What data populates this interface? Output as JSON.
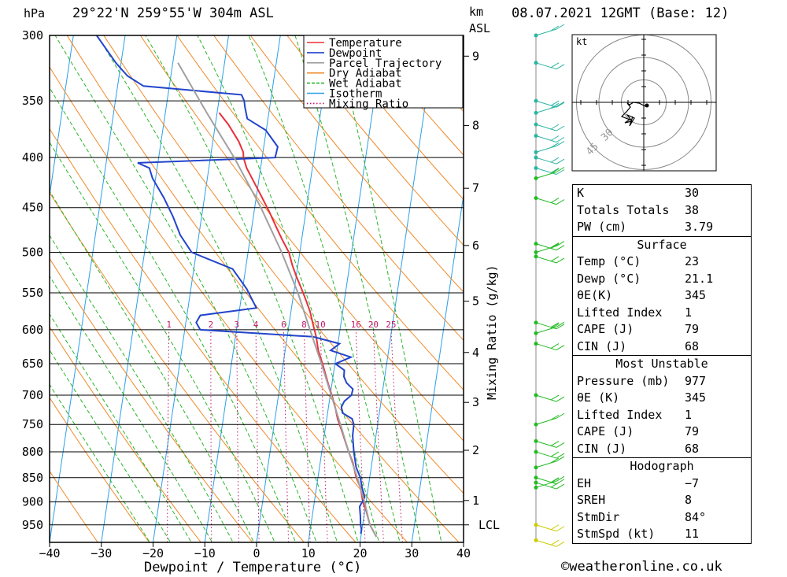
{
  "header": {
    "unit_left": "hPa",
    "location": "29°22'N  259°55'W  304m  ASL",
    "unit_km": "km",
    "unit_asl": "ASL",
    "datetime": "08.07.2021  12GMT  (Base: 12)"
  },
  "chart_data": {
    "type": "line",
    "title": "Skew-T log-P diagram",
    "xlabel": "Dewpoint / Temperature (°C)",
    "ylabel": "hPa",
    "right_label": "Mixing Ratio (g/kg)",
    "xlim": [
      -40,
      40
    ],
    "ylim": [
      990,
      300
    ],
    "x_ticks": [
      "−40",
      "−30",
      "−20",
      "−10",
      "0",
      "10",
      "20",
      "30",
      "40"
    ],
    "x_tick_values": [
      -40,
      -30,
      -20,
      -10,
      0,
      10,
      20,
      30,
      40
    ],
    "pressure_ticks": [
      300,
      350,
      400,
      450,
      500,
      550,
      600,
      650,
      700,
      750,
      800,
      850,
      900,
      950
    ],
    "km_ticks": [
      {
        "label": "9",
        "p": 315
      },
      {
        "label": "8",
        "p": 371
      },
      {
        "label": "7",
        "p": 430
      },
      {
        "label": "6",
        "p": 492
      },
      {
        "label": "5",
        "p": 561
      },
      {
        "label": "4",
        "p": 633
      },
      {
        "label": "3",
        "p": 712
      },
      {
        "label": "2",
        "p": 797
      },
      {
        "label": "1",
        "p": 897
      },
      {
        "label": "LCL",
        "p": 950
      }
    ],
    "mixing_ratio_labels": [
      "1",
      "2",
      "3",
      "4",
      "6",
      "8",
      "10",
      "16",
      "20",
      "25"
    ],
    "mixing_ratio_values": [
      1,
      2,
      3,
      4,
      6,
      8,
      10,
      16,
      20,
      25
    ],
    "legend": [
      "Temperature",
      "Dewpoint",
      "Parcel Trajectory",
      "Dry Adiabat",
      "Wet Adiabat",
      "Isotherm",
      "Mixing Ratio"
    ],
    "legend_position": "top-right",
    "series": [
      {
        "name": "Temperature",
        "color": "#e8303a",
        "points": [
          [
            977,
            23
          ],
          [
            950,
            21.4
          ],
          [
            920,
            20.3
          ],
          [
            900,
            19.4
          ],
          [
            870,
            18.5
          ],
          [
            850,
            17.4
          ],
          [
            820,
            16.3
          ],
          [
            800,
            15.2
          ],
          [
            760,
            13.2
          ],
          [
            740,
            12.1
          ],
          [
            720,
            11.3
          ],
          [
            700,
            10.3
          ],
          [
            680,
            9.2
          ],
          [
            650,
            7.6
          ],
          [
            630,
            6.4
          ],
          [
            610,
            5.6
          ],
          [
            590,
            4.5
          ],
          [
            575,
            3.7
          ],
          [
            560,
            2.6
          ],
          [
            545,
            1.4
          ],
          [
            530,
            0.1
          ],
          [
            515,
            -1.1
          ],
          [
            500,
            -2.1
          ],
          [
            485,
            -3.8
          ],
          [
            470,
            -5.4
          ],
          [
            455,
            -7
          ],
          [
            440,
            -8.8
          ],
          [
            425,
            -10.7
          ],
          [
            410,
            -12.7
          ],
          [
            400,
            -13.6
          ],
          [
            395,
            -13.8
          ],
          [
            385,
            -15
          ],
          [
            370,
            -17.5
          ],
          [
            360,
            -19.6
          ]
        ]
      },
      {
        "name": "Dewpoint",
        "color": "#2244cc",
        "points": [
          [
            970,
            19.9
          ],
          [
            960,
            19.9
          ],
          [
            950,
            19.6
          ],
          [
            930,
            19.3
          ],
          [
            910,
            18.9
          ],
          [
            890,
            19.6
          ],
          [
            870,
            18.8
          ],
          [
            850,
            18.2
          ],
          [
            830,
            17.1
          ],
          [
            800,
            16.2
          ],
          [
            770,
            15.5
          ],
          [
            750,
            15.4
          ],
          [
            740,
            14.9
          ],
          [
            730,
            12.9
          ],
          [
            720,
            12.5
          ],
          [
            710,
            12.9
          ],
          [
            700,
            14.1
          ],
          [
            690,
            14.2
          ],
          [
            680,
            12.8
          ],
          [
            670,
            12.1
          ],
          [
            660,
            12
          ],
          [
            650,
            10.1
          ],
          [
            640,
            12.9
          ],
          [
            630,
            8.8
          ],
          [
            620,
            10.3
          ],
          [
            610,
            5
          ],
          [
            600,
            -17
          ],
          [
            590,
            -18
          ],
          [
            580,
            -17.4
          ],
          [
            570,
            -6.8
          ],
          [
            545,
            -9.2
          ],
          [
            520,
            -12.5
          ],
          [
            500,
            -20.9
          ],
          [
            480,
            -23.6
          ],
          [
            460,
            -25.5
          ],
          [
            440,
            -27.8
          ],
          [
            420,
            -30.6
          ],
          [
            410,
            -31.5
          ],
          [
            405,
            -33.9
          ],
          [
            400,
            -7.5
          ],
          [
            390,
            -7.3
          ],
          [
            375,
            -10.1
          ],
          [
            365,
            -14
          ],
          [
            355,
            -14.8
          ],
          [
            350,
            -15.1
          ],
          [
            345,
            -15.8
          ],
          [
            338,
            -35
          ],
          [
            330,
            -38.4
          ],
          [
            320,
            -41
          ],
          [
            300,
            -45.5
          ]
        ]
      },
      {
        "name": "Parcel Trajectory",
        "color": "#a0a0a0",
        "points": [
          [
            977,
            23
          ],
          [
            950,
            21.4
          ],
          [
            900,
            19.7
          ],
          [
            850,
            17.6
          ],
          [
            800,
            15.2
          ],
          [
            750,
            12.8
          ],
          [
            700,
            10.2
          ],
          [
            650,
            7.4
          ],
          [
            600,
            4.2
          ],
          [
            550,
            0.8
          ],
          [
            500,
            -3.5
          ],
          [
            450,
            -8.8
          ],
          [
            400,
            -15.4
          ],
          [
            360,
            -22
          ],
          [
            320,
            -29
          ]
        ]
      }
    ]
  },
  "hodograph": {
    "unit": "kt",
    "ring_labels": [
      "45",
      "30"
    ]
  },
  "indices": {
    "top": [
      {
        "label": "K",
        "value": "30"
      },
      {
        "label": "Totals Totals",
        "value": "38"
      },
      {
        "label": "PW (cm)",
        "value": "3.79"
      }
    ],
    "surface_title": "Surface",
    "surface": [
      {
        "label": "Temp (°C)",
        "value": "23"
      },
      {
        "label": "Dewp (°C)",
        "value": "21.1"
      },
      {
        "label": "θE(K)",
        "value": "345"
      },
      {
        "label": "Lifted Index",
        "value": "1"
      },
      {
        "label": "CAPE (J)",
        "value": "79"
      },
      {
        "label": "CIN (J)",
        "value": "68"
      }
    ],
    "mu_title": "Most Unstable",
    "mu": [
      {
        "label": "Pressure (mb)",
        "value": "977"
      },
      {
        "label": "θE (K)",
        "value": "345"
      },
      {
        "label": "Lifted Index",
        "value": "1"
      },
      {
        "label": "CAPE (J)",
        "value": "79"
      },
      {
        "label": "CIN (J)",
        "value": "68"
      }
    ],
    "hodo_title": "Hodograph",
    "hodo": [
      {
        "label": "EH",
        "value": "−7"
      },
      {
        "label": "SREH",
        "value": "8"
      },
      {
        "label": "StmDir",
        "value": "84°"
      },
      {
        "label": "StmSpd (kt)",
        "value": "11"
      }
    ]
  },
  "credit": "©weatheronline.co.uk",
  "colors": {
    "temperature": "#e8303a",
    "dewpoint": "#2244cc",
    "parcel": "#a0a0a0",
    "dry_adiabat": "#f08a2a",
    "wet_adiabat": "#2ab52a",
    "isotherm": "#2aa0e8",
    "mixing_ratio": "#c0186a"
  }
}
